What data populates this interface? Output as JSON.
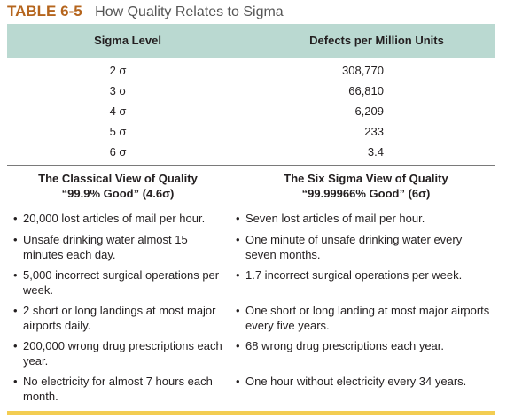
{
  "title": {
    "label": "TABLE 6-5",
    "text": "How Quality Relates to Sigma"
  },
  "sigma_table": {
    "headers": [
      "Sigma Level",
      "Defects per Million Units"
    ],
    "rows": [
      {
        "level": "2 σ",
        "defects": "308,770"
      },
      {
        "level": "3 σ",
        "defects": "66,810"
      },
      {
        "level": "4 σ",
        "defects": "6,209"
      },
      {
        "level": "5 σ",
        "defects": "233"
      },
      {
        "level": "6 σ",
        "defects": "3.4"
      }
    ]
  },
  "classical_view": {
    "title": "The Classical View of Quality",
    "subtitle": "“99.9% Good” (4.6σ)",
    "items": [
      "20,000 lost articles of mail per hour.",
      "Unsafe drinking water almost 15 minutes each day.",
      "5,000 incorrect surgical operations per week.",
      "2 short or long landings at most major airports daily.",
      "200,000 wrong drug prescriptions each year.",
      "No electricity for almost 7 hours each month."
    ]
  },
  "six_sigma_view": {
    "title": "The Six Sigma View of Quality",
    "subtitle": "“99.99966% Good” (6σ)",
    "items": [
      "Seven lost articles of mail per hour.",
      "One minute of unsafe drinking water every seven months.",
      "1.7 incorrect surgical operations per week.",
      "One short or long landing at most major airports every five years.",
      "68 wrong drug prescriptions each year.",
      "One hour without electricity every 34 years."
    ]
  },
  "colors": {
    "label": "#b5651d",
    "header_band": "#bad9d1",
    "bottom_bar": "#f3cd52"
  }
}
